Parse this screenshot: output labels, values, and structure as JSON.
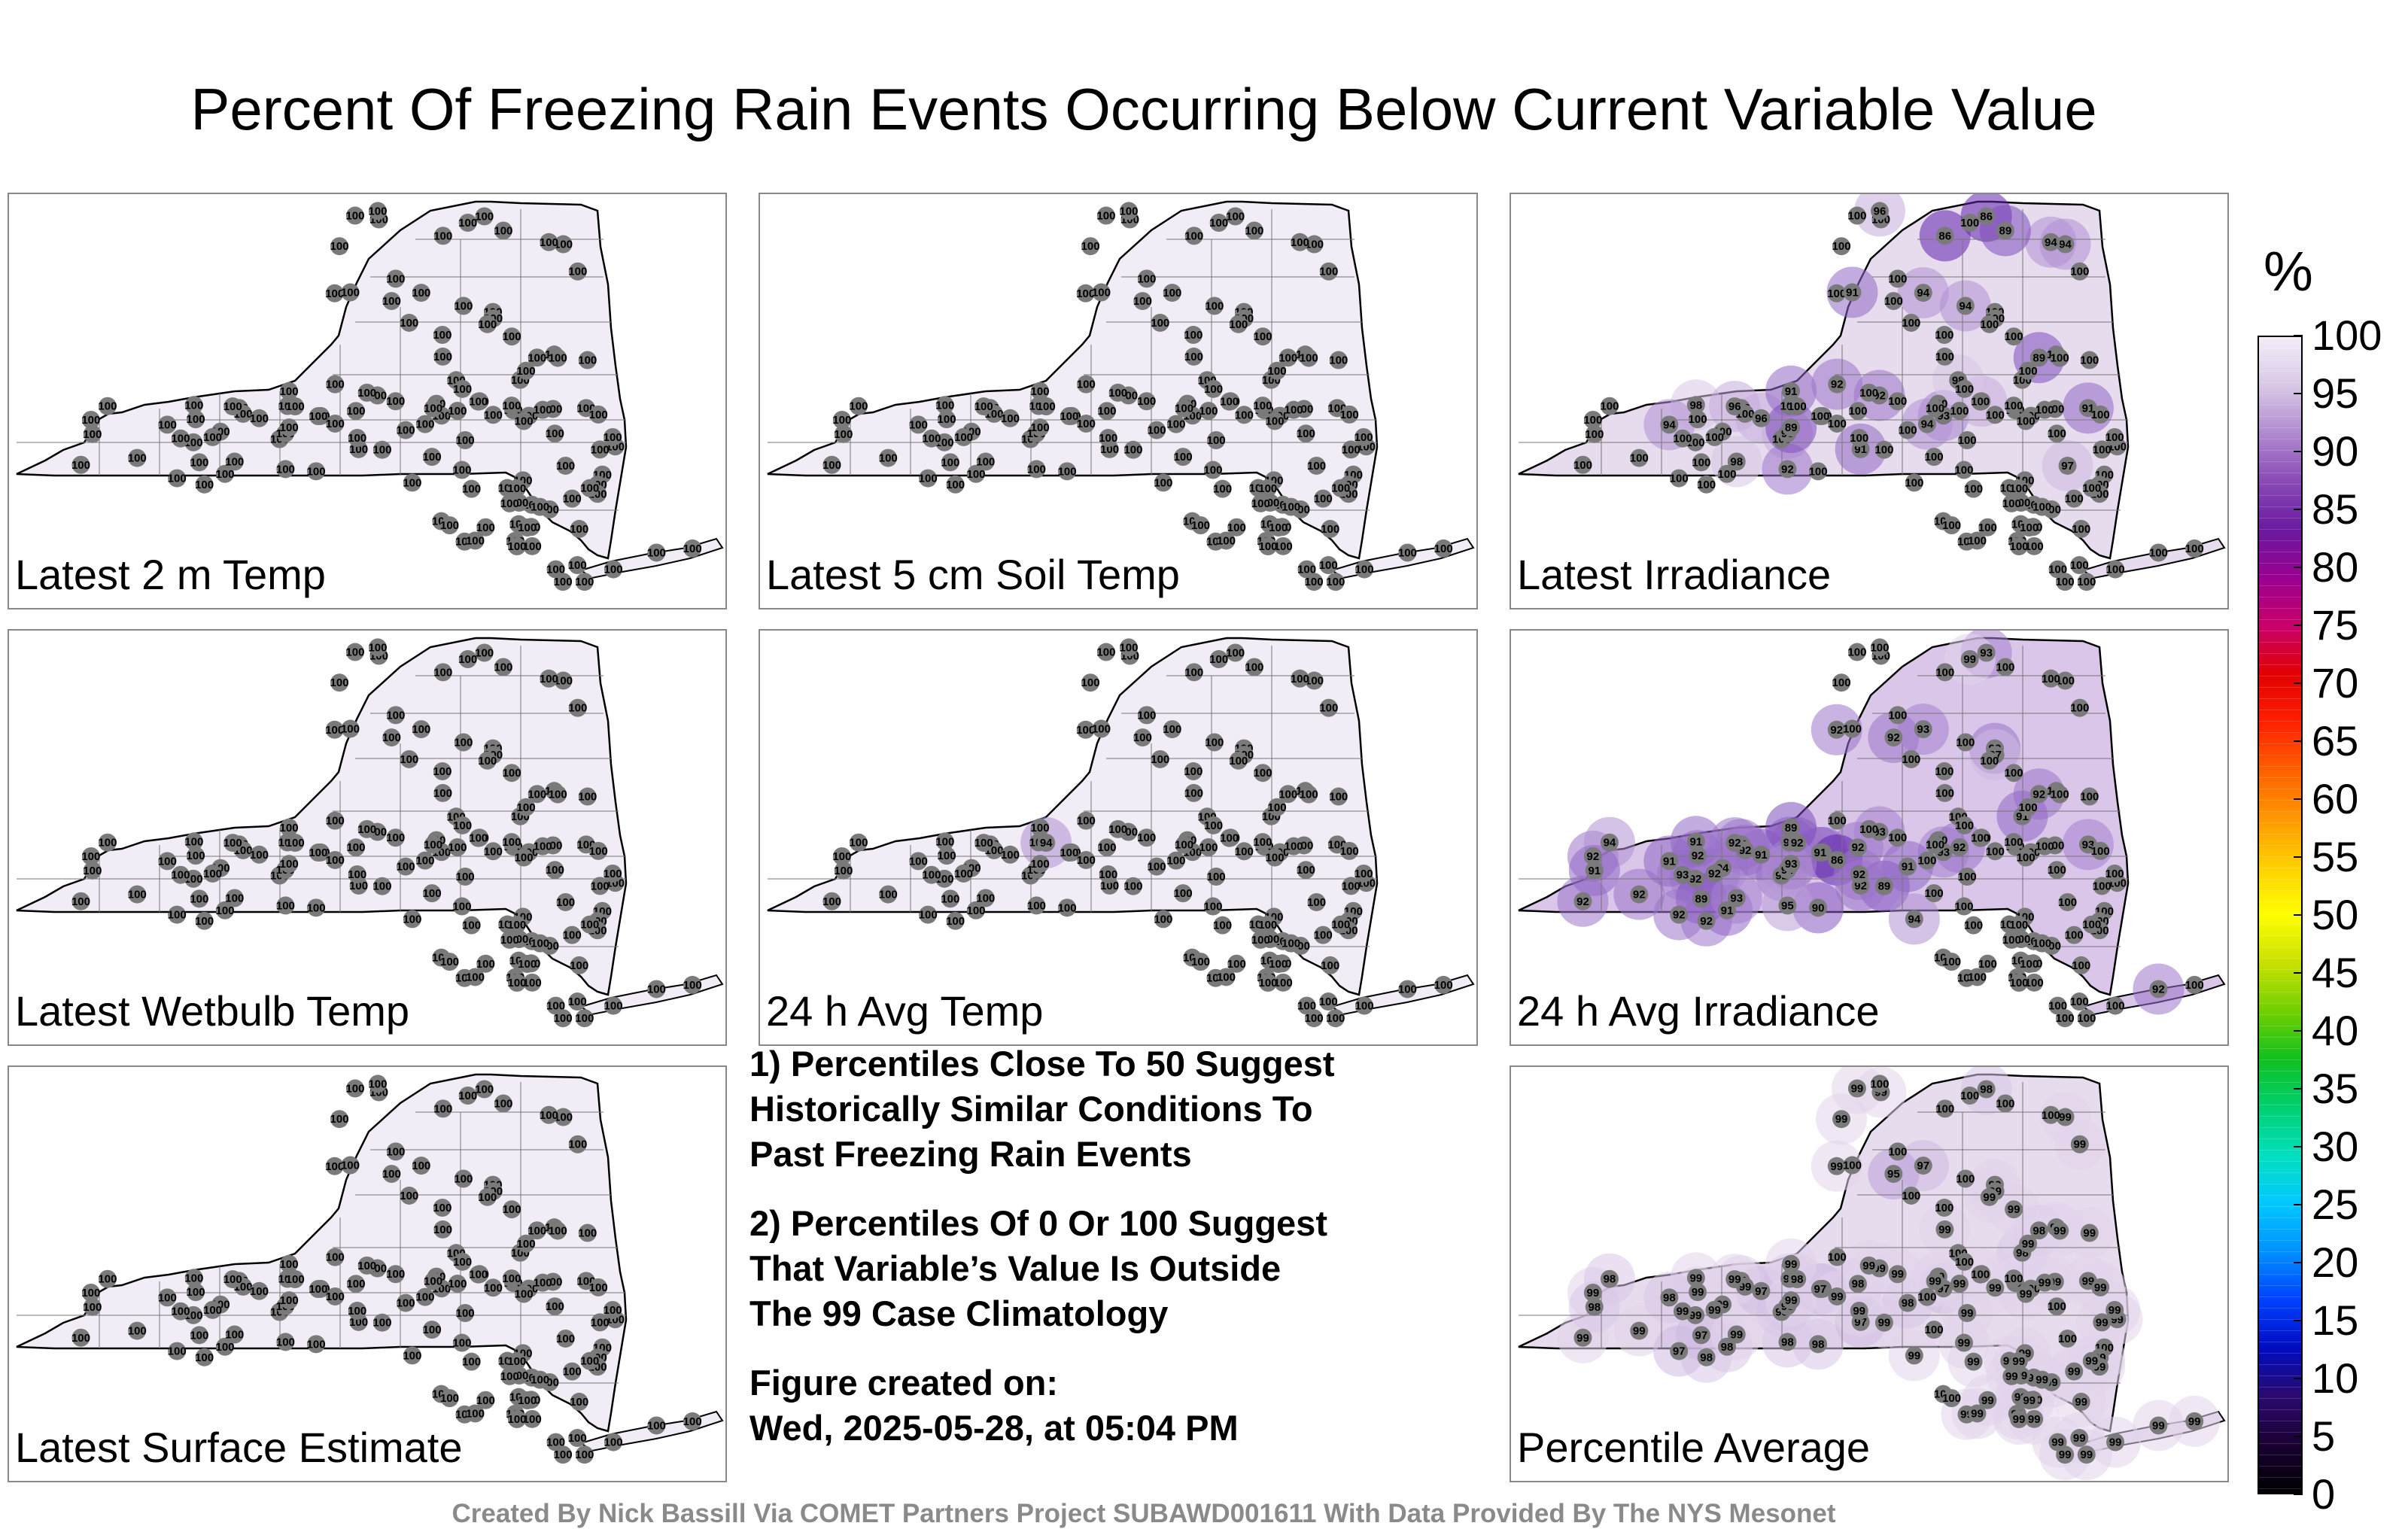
{
  "title": "Percent Of Freezing Rain Events Occurring Below Current Variable Value",
  "panels": [
    {
      "label": "Latest 2 m Temp",
      "values": [
        100,
        100,
        100,
        100,
        100,
        100,
        100,
        100,
        100,
        100,
        100,
        100,
        100,
        100,
        100,
        100,
        100,
        100,
        100,
        100,
        100,
        100,
        100,
        100,
        100,
        100,
        100,
        100,
        100,
        100,
        100,
        100,
        100,
        100,
        100,
        100,
        100,
        100,
        100,
        100,
        100,
        100,
        100,
        100,
        100,
        100,
        100,
        100,
        100,
        100,
        100,
        100,
        100,
        100,
        100,
        100,
        100,
        100,
        100,
        100,
        100,
        100,
        100,
        100,
        100,
        100,
        100,
        100,
        100,
        100,
        100,
        100,
        100,
        100,
        100,
        100,
        100,
        100,
        100,
        100,
        100,
        100,
        100,
        100,
        100,
        100,
        100,
        100,
        100,
        100,
        100,
        100,
        100,
        100,
        100,
        100,
        100,
        100,
        100,
        100,
        100,
        100,
        100,
        100,
        100,
        100,
        100,
        100,
        100,
        100,
        100,
        100,
        100,
        100,
        100,
        100,
        100,
        100,
        100,
        100,
        100,
        100,
        100,
        100,
        100,
        100,
        100,
        100,
        100,
        100
      ]
    },
    {
      "label": "Latest 5 cm Soil Temp",
      "values": [
        100,
        100,
        100,
        100,
        100,
        100,
        100,
        100,
        100,
        100,
        100,
        100,
        100,
        100,
        100,
        100,
        100,
        100,
        100,
        100,
        100,
        100,
        100,
        100,
        100,
        100,
        100,
        100,
        100,
        100,
        100,
        100,
        100,
        100,
        100,
        100,
        100,
        100,
        100,
        100,
        100,
        100,
        100,
        100,
        100,
        100,
        100,
        100,
        100,
        100,
        100,
        100,
        100,
        100,
        100,
        100,
        100,
        100,
        100,
        100,
        100,
        100,
        100,
        100,
        100,
        100,
        100,
        100,
        100,
        100,
        100,
        100,
        100,
        100,
        100,
        100,
        100,
        100,
        100,
        100,
        100,
        100,
        100,
        100,
        100,
        100,
        100,
        100,
        100,
        100,
        100,
        100,
        100,
        100,
        100,
        100,
        100,
        100,
        100,
        100,
        100,
        100,
        100,
        100,
        100,
        100,
        100,
        100,
        100,
        100,
        100,
        100,
        100,
        100,
        100,
        100,
        100,
        100,
        100,
        100,
        100,
        100,
        100,
        100,
        100,
        100,
        100,
        100,
        100,
        100
      ]
    },
    {
      "label": "Latest Irradiance",
      "values": [
        100,
        100,
        100,
        100,
        100,
        100,
        100,
        100,
        100,
        100,
        100,
        100,
        100,
        100,
        100,
        100,
        100,
        100,
        100,
        100,
        96,
        100,
        100,
        100,
        100,
        100,
        98,
        91,
        94,
        91,
        93,
        96,
        92,
        89,
        96,
        92,
        98,
        100,
        91,
        89,
        86,
        94,
        100,
        100,
        100,
        100,
        100,
        100,
        100,
        100,
        100,
        100,
        100,
        100,
        100,
        100,
        100,
        100,
        96,
        94,
        100,
        100,
        91,
        100,
        94,
        96,
        89,
        86,
        94,
        92,
        98,
        94,
        97,
        100,
        100,
        100,
        100,
        100,
        100,
        100,
        100,
        100,
        100,
        100,
        100,
        100,
        100,
        100,
        100,
        100,
        100,
        100,
        100,
        100,
        100,
        100,
        100,
        100,
        100,
        100,
        100,
        100,
        100,
        100,
        100,
        100,
        100,
        100,
        100,
        100,
        100,
        100,
        100,
        100,
        100,
        100,
        100,
        100,
        100,
        100,
        100,
        100,
        100,
        100,
        100,
        100,
        100,
        100,
        100,
        100
      ]
    },
    {
      "label": "Latest Wetbulb Temp",
      "values": [
        100,
        100,
        100,
        100,
        100,
        100,
        100,
        100,
        100,
        100,
        100,
        100,
        100,
        100,
        100,
        100,
        100,
        100,
        100,
        100,
        100,
        100,
        100,
        100,
        100,
        100,
        100,
        100,
        100,
        100,
        100,
        100,
        100,
        100,
        100,
        100,
        100,
        100,
        100,
        100,
        100,
        100,
        100,
        100,
        100,
        100,
        100,
        100,
        100,
        100,
        100,
        100,
        100,
        100,
        100,
        100,
        100,
        100,
        100,
        100,
        100,
        100,
        100,
        100,
        100,
        100,
        100,
        100,
        100,
        100,
        100,
        100,
        100,
        100,
        100,
        100,
        100,
        100,
        100,
        100,
        100,
        100,
        100,
        100,
        100,
        100,
        100,
        100,
        100,
        100,
        100,
        100,
        100,
        100,
        100,
        100,
        100,
        100,
        100,
        100,
        100,
        100,
        100,
        100,
        100,
        100,
        100,
        100,
        100,
        100,
        100,
        100,
        100,
        100,
        100,
        100,
        100,
        100,
        100,
        100,
        100,
        100,
        100,
        100,
        100,
        100,
        100,
        100,
        100,
        100
      ]
    },
    {
      "label": "24 h Avg Temp",
      "values": [
        100,
        100,
        100,
        100,
        100,
        100,
        100,
        100,
        100,
        100,
        100,
        100,
        100,
        100,
        100,
        100,
        100,
        100,
        100,
        100,
        100,
        100,
        100,
        94,
        100,
        100,
        100,
        100,
        100,
        100,
        100,
        100,
        100,
        100,
        100,
        100,
        100,
        100,
        100,
        100,
        100,
        100,
        100,
        100,
        100,
        100,
        100,
        100,
        100,
        100,
        100,
        100,
        100,
        100,
        100,
        100,
        100,
        100,
        100,
        100,
        100,
        100,
        100,
        100,
        100,
        100,
        100,
        100,
        100,
        100,
        100,
        100,
        100,
        100,
        100,
        100,
        100,
        100,
        100,
        100,
        100,
        100,
        100,
        100,
        100,
        100,
        100,
        100,
        100,
        100,
        100,
        100,
        100,
        100,
        100,
        100,
        100,
        100,
        100,
        100,
        100,
        100,
        100,
        100,
        100,
        100,
        100,
        100,
        100,
        100,
        100,
        100,
        100,
        100,
        100,
        100,
        100,
        100,
        100,
        100,
        100,
        100,
        100,
        100,
        100,
        100,
        100,
        100,
        100,
        100
      ]
    },
    {
      "label": "24 h Avg Irradiance",
      "values": [
        92,
        92,
        93,
        92,
        94,
        92,
        92,
        92,
        92,
        92,
        94,
        90,
        91,
        91,
        92,
        92,
        92,
        92,
        91,
        89,
        91,
        92,
        91,
        92,
        86,
        89,
        91,
        89,
        91,
        92,
        93,
        94,
        95,
        93,
        92,
        93,
        93,
        94,
        93,
        92,
        93,
        93,
        92,
        91,
        91,
        92,
        92,
        92,
        92,
        97,
        100,
        100,
        100,
        100,
        100,
        100,
        100,
        100,
        100,
        100,
        99,
        100,
        100,
        100,
        100,
        100,
        100,
        100,
        100,
        100,
        100,
        100,
        100,
        100,
        100,
        100,
        100,
        100,
        100,
        100,
        100,
        100,
        100,
        100,
        100,
        100,
        100,
        100,
        100,
        100,
        100,
        100,
        100,
        100,
        100,
        100,
        100,
        100,
        100,
        100,
        100,
        100,
        100,
        100,
        100,
        100,
        100,
        100,
        100,
        100,
        100,
        100,
        100,
        100,
        100,
        100,
        100,
        100,
        100,
        100,
        100,
        100,
        100,
        100,
        100,
        100,
        100,
        100,
        100,
        100
      ]
    },
    {
      "label": "Latest Surface Estimate",
      "values": [
        100,
        100,
        100,
        100,
        100,
        100,
        100,
        100,
        100,
        100,
        100,
        100,
        100,
        100,
        100,
        100,
        100,
        100,
        100,
        100,
        100,
        100,
        100,
        100,
        100,
        100,
        100,
        100,
        100,
        100,
        100,
        100,
        100,
        100,
        100,
        100,
        100,
        100,
        100,
        100,
        100,
        100,
        100,
        100,
        100,
        100,
        100,
        100,
        100,
        100,
        100,
        100,
        100,
        100,
        100,
        100,
        100,
        100,
        100,
        100,
        100,
        100,
        100,
        100,
        100,
        100,
        100,
        100,
        100,
        100,
        100,
        100,
        100,
        100,
        100,
        100,
        100,
        100,
        100,
        100,
        100,
        100,
        100,
        100,
        100,
        100,
        100,
        100,
        100,
        100,
        100,
        100,
        100,
        100,
        100,
        100,
        100,
        100,
        100,
        100,
        100,
        100,
        100,
        100,
        100,
        100,
        100,
        100,
        100,
        100,
        100,
        100,
        100,
        100,
        100,
        100,
        100,
        100,
        100,
        100,
        100,
        100,
        100,
        100,
        100,
        100,
        100,
        100,
        100,
        100
      ]
    },
    {
      "label": "Percentile Average",
      "values": [
        99,
        99,
        99,
        99,
        99,
        99,
        99,
        99,
        99,
        99,
        98,
        98,
        98,
        98,
        98,
        98,
        98,
        98,
        97,
        97,
        97,
        97,
        98,
        98,
        99,
        99,
        99,
        99,
        98,
        97,
        97,
        98,
        98,
        99,
        99,
        99,
        99,
        99,
        99,
        98,
        98,
        97,
        95,
        98,
        98,
        99,
        99,
        99,
        99,
        99,
        99,
        99,
        99,
        99,
        99,
        99,
        99,
        99,
        99,
        99,
        100,
        100,
        100,
        100,
        100,
        100,
        100,
        100,
        100,
        100,
        100,
        100,
        100,
        100,
        100,
        100,
        100,
        100,
        100,
        100,
        100,
        100,
        100,
        100,
        99,
        99,
        99,
        99,
        99,
        99,
        99,
        99,
        99,
        99,
        99,
        99,
        99,
        99,
        99,
        99,
        99,
        99,
        99,
        99,
        99,
        99,
        99,
        99,
        99,
        99,
        99,
        99,
        99,
        99,
        99,
        99,
        99,
        99,
        99,
        99,
        99,
        99,
        99,
        99,
        99,
        99,
        99,
        99,
        99,
        99
      ]
    }
  ],
  "notes": [
    "1) Percentiles Close To 50 Suggest Historically Similar Conditions To Past Freezing Rain Events",
    "2) Percentiles Of 0 Or 100 Suggest That Variable’s Value Is Outside The 99 Case Climatology",
    "Figure created on: Wed, 2025-05-28, at 05:04 PM"
  ],
  "notes_lines": {
    "n1": [
      "1) Percentiles Close To 50 Suggest",
      "Historically Similar Conditions To",
      "Past Freezing Rain Events"
    ],
    "n2": [
      "2) Percentiles Of 0 Or 100 Suggest",
      "That Variable’s Value Is Outside",
      "The 99 Case Climatology"
    ],
    "n3": [
      "Figure created on:",
      "Wed, 2025-05-28, at 05:04 PM"
    ]
  },
  "colorbar": {
    "unit": "%",
    "ticks": [
      "100",
      "95",
      "90",
      "85",
      "80",
      "75",
      "70",
      "65",
      "60",
      "55",
      "50",
      "45",
      "40",
      "35",
      "30",
      "25",
      "20",
      "15",
      "10",
      "5",
      "0"
    ],
    "colors": [
      "#000000",
      "#1a0033",
      "#2b0a6e",
      "#000cc0",
      "#0040ff",
      "#0090ff",
      "#00c8ff",
      "#00e0c0",
      "#00d070",
      "#10c020",
      "#70d000",
      "#c8e000",
      "#ffff00",
      "#ffd000",
      "#ff9800",
      "#ff6000",
      "#ff2000",
      "#e00000",
      "#c8006a",
      "#9a0090",
      "#6a1aa0",
      "#8a4ab5",
      "#b08ad0",
      "#d8c8e6",
      "#f3eef7"
    ]
  },
  "credit": "Created By Nick Bassill Via COMET Partners Project SUBAWD001611 With Data Provided By The NYS Mesonet"
}
